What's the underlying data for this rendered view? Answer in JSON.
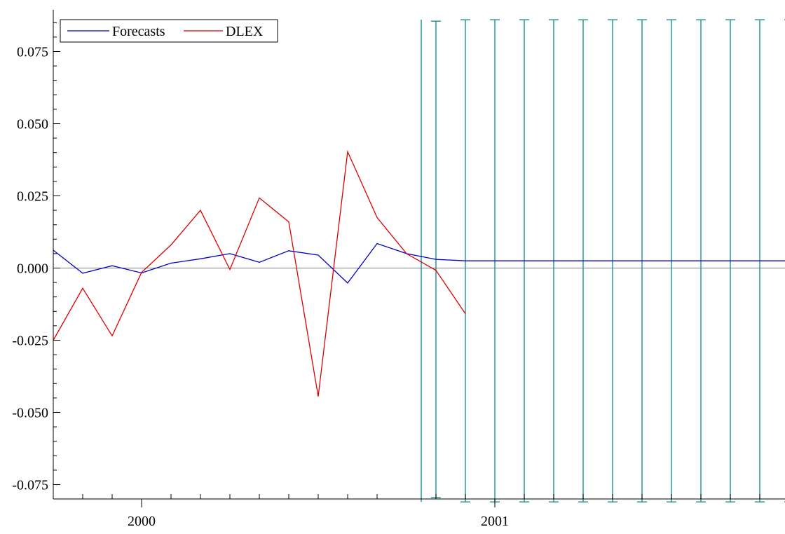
{
  "chart_data": {
    "type": "line",
    "title": "",
    "xlabel": "",
    "ylabel": "",
    "x_tick_labels": [
      "2000",
      "2001"
    ],
    "y_tick_labels": [
      "0.075",
      "0.050",
      "0.025",
      "0.000",
      "-0.025",
      "-0.050",
      "-0.075"
    ],
    "y_tick_values": [
      0.075,
      0.05,
      0.025,
      0.0,
      -0.025,
      -0.05,
      -0.075
    ],
    "ylim": [
      -0.082,
      0.09
    ],
    "grid": false,
    "zero_line": true,
    "legend": {
      "placement": "top-left",
      "entries": [
        "Forecasts",
        "DLEX"
      ]
    },
    "series": [
      {
        "name": "Forecasts",
        "color": "#0000cc",
        "points": [
          {
            "t": 0,
            "y": 0.0062
          },
          {
            "t": 1,
            "y": -0.0018
          },
          {
            "t": 2,
            "y": 0.0008
          },
          {
            "t": 3,
            "y": -0.0017
          },
          {
            "t": 4,
            "y": 0.0017
          },
          {
            "t": 5,
            "y": 0.0032
          },
          {
            "t": 6,
            "y": 0.005
          },
          {
            "t": 7,
            "y": 0.002
          },
          {
            "t": 8,
            "y": 0.006
          },
          {
            "t": 9,
            "y": 0.0045
          },
          {
            "t": 10,
            "y": -0.0052
          },
          {
            "t": 11,
            "y": 0.0085
          },
          {
            "t": 12,
            "y": 0.005
          },
          {
            "t": 13,
            "y": 0.003
          },
          {
            "t": 14,
            "y": 0.0025
          },
          {
            "t": 15,
            "y": 0.0025
          },
          {
            "t": 16,
            "y": 0.0025
          },
          {
            "t": 17,
            "y": 0.0025
          },
          {
            "t": 18,
            "y": 0.0025
          },
          {
            "t": 19,
            "y": 0.0025
          },
          {
            "t": 20,
            "y": 0.0025
          },
          {
            "t": 21,
            "y": 0.0025
          },
          {
            "t": 22,
            "y": 0.0025
          },
          {
            "t": 23,
            "y": 0.0025
          },
          {
            "t": 24,
            "y": 0.0025
          },
          {
            "t": 25,
            "y": 0.0025
          }
        ]
      },
      {
        "name": "DLEX",
        "color": "#dd0000",
        "points": [
          {
            "t": 0,
            "y": -0.025
          },
          {
            "t": 1,
            "y": -0.007
          },
          {
            "t": 2,
            "y": -0.0235
          },
          {
            "t": 3,
            "y": -0.0015
          },
          {
            "t": 4,
            "y": 0.008
          },
          {
            "t": 5,
            "y": 0.02
          },
          {
            "t": 6,
            "y": -0.0005
          },
          {
            "t": 7,
            "y": 0.0243
          },
          {
            "t": 8,
            "y": 0.016
          },
          {
            "t": 9,
            "y": -0.0445
          },
          {
            "t": 10,
            "y": 0.0403
          },
          {
            "t": 11,
            "y": 0.0175
          },
          {
            "t": 12,
            "y": 0.005
          },
          {
            "t": 13,
            "y": -0.0008
          },
          {
            "t": 14,
            "y": -0.0158
          }
        ]
      }
    ],
    "error_bars": {
      "color": "#1a9088",
      "intervals": [
        {
          "t": 12.5,
          "low": -0.081,
          "high": 0.086,
          "cap": false
        },
        {
          "t": 13,
          "low": -0.0795,
          "high": 0.0855,
          "cap": true
        },
        {
          "t": 14,
          "low": -0.081,
          "high": 0.086,
          "cap": true
        },
        {
          "t": 15,
          "low": -0.081,
          "high": 0.086,
          "cap": true
        },
        {
          "t": 16,
          "low": -0.081,
          "high": 0.086,
          "cap": true
        },
        {
          "t": 17,
          "low": -0.081,
          "high": 0.086,
          "cap": true
        },
        {
          "t": 18,
          "low": -0.081,
          "high": 0.086,
          "cap": true
        },
        {
          "t": 19,
          "low": -0.081,
          "high": 0.086,
          "cap": true
        },
        {
          "t": 20,
          "low": -0.081,
          "high": 0.086,
          "cap": true
        },
        {
          "t": 21,
          "low": -0.081,
          "high": 0.086,
          "cap": true
        },
        {
          "t": 22,
          "low": -0.081,
          "high": 0.086,
          "cap": true
        },
        {
          "t": 23,
          "low": -0.081,
          "high": 0.086,
          "cap": true
        },
        {
          "t": 24,
          "low": -0.081,
          "high": 0.086,
          "cap": true
        },
        {
          "t": 25,
          "low": -0.081,
          "high": 0.086,
          "cap": true
        }
      ]
    },
    "x_major_ticks": [
      {
        "t": 3,
        "label": "2000"
      },
      {
        "t": 15,
        "label": "2001"
      }
    ],
    "x_minor_ticks": [
      1,
      2,
      4,
      5,
      6,
      7,
      8,
      9,
      10,
      11,
      13,
      14,
      16,
      17,
      18,
      19,
      20,
      21,
      22,
      23,
      24,
      25
    ]
  }
}
